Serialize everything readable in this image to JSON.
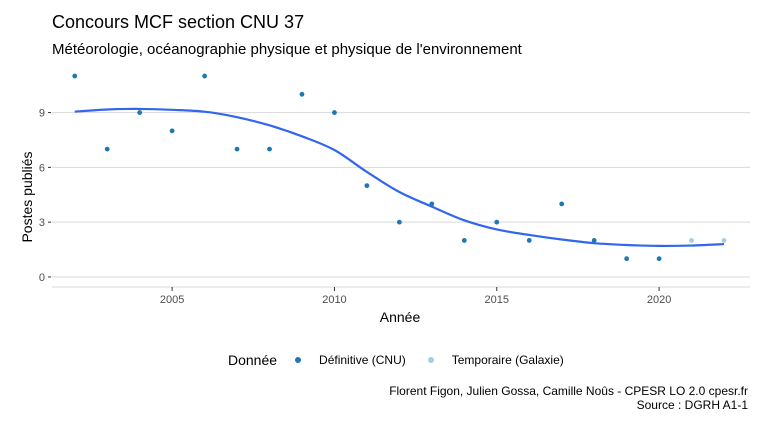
{
  "chart_data": {
    "type": "scatter",
    "title": "Concours MCF section CNU 37",
    "subtitle": "Météorologie, océanographie physique et physique de l'environnement",
    "xlabel": "Année",
    "ylabel": "Postes publiés",
    "xlim": [
      2001.3,
      2022.8
    ],
    "ylim": [
      -0.55,
      11.55
    ],
    "x_ticks": [
      2005,
      2010,
      2015,
      2020
    ],
    "y_ticks": [
      0,
      3,
      6,
      9
    ],
    "y_tick_labels": [
      "0",
      "3",
      "6",
      "9"
    ],
    "grid": true,
    "legend": {
      "title": "Donnée",
      "position": "bottom",
      "entries": [
        {
          "label": "Définitive (CNU)",
          "color": "#1f77b4"
        },
        {
          "label": "Temporaire (Galaxie)",
          "color": "#a6cee3"
        }
      ]
    },
    "series": [
      {
        "name": "Définitive (CNU)",
        "color": "#1f77b4",
        "x": [
          2002,
          2003,
          2004,
          2005,
          2006,
          2007,
          2008,
          2009,
          2010,
          2011,
          2012,
          2013,
          2014,
          2015,
          2016,
          2017,
          2018,
          2019,
          2020
        ],
        "y": [
          11,
          7,
          9,
          8,
          11,
          7,
          7,
          10,
          9,
          5,
          3,
          4,
          2,
          3,
          2,
          4,
          2,
          1,
          1
        ]
      },
      {
        "name": "Temporaire (Galaxie)",
        "color": "#a6cee3",
        "x": [
          2021,
          2022
        ],
        "y": [
          2,
          2
        ]
      }
    ],
    "smooth": {
      "color": "#3366ee",
      "x": [
        2002,
        2003,
        2004,
        2005,
        2006,
        2007,
        2008,
        2009,
        2010,
        2011,
        2012,
        2013,
        2014,
        2015,
        2016,
        2017,
        2018,
        2019,
        2020,
        2021,
        2022
      ],
      "y": [
        9.05,
        9.17,
        9.2,
        9.15,
        9.05,
        8.75,
        8.3,
        7.7,
        6.95,
        5.75,
        4.65,
        3.85,
        3.1,
        2.6,
        2.3,
        2.05,
        1.85,
        1.75,
        1.7,
        1.72,
        1.8
      ]
    }
  },
  "caption": {
    "line1": "Florent Figon, Julien Gossa, Camille Noûs - CPESR LO 2.0 cpesr.fr",
    "line2": "Source : DGRH A1-1"
  }
}
